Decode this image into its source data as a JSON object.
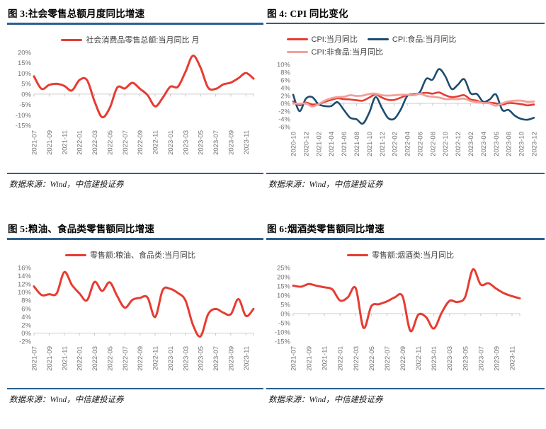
{
  "page": {
    "background": "#ffffff",
    "accent_rule_color": "#2B608E"
  },
  "figures": [
    {
      "title": "图 3:社会零售总额月度同比增速",
      "source": "数据来源：Wind，中信建投证券"
    },
    {
      "title": "图 4: CPI 同比变化",
      "source": "数据来源：Wind，中信建投证券"
    },
    {
      "title": "图 5:粮油、食品类零售额同比增速",
      "source": "数据来源：Wind，中信建投证券"
    },
    {
      "title": "图 6:烟酒类零售额同比增速",
      "source": "数据来源：Wind，中信建投证券"
    }
  ],
  "chart_data": [
    {
      "type": "line",
      "title": "图 3:社会零售总额月度同比增速",
      "ylim": [
        -15,
        20
      ],
      "ystep": 5,
      "y_format": "percent",
      "grid": false,
      "legend_position": "top-center",
      "xlabel_every": 2,
      "months": [
        "2021-07",
        "2021-08",
        "2021-09",
        "2021-10",
        "2021-11",
        "2021-12",
        "2022-01",
        "2022-02",
        "2022-03",
        "2022-04",
        "2022-05",
        "2022-06",
        "2022-07",
        "2022-08",
        "2022-09",
        "2022-10",
        "2022-11",
        "2022-12",
        "2023-01",
        "2023-02",
        "2023-03",
        "2023-04",
        "2023-05",
        "2023-06",
        "2023-07",
        "2023-08",
        "2023-09",
        "2023-10",
        "2023-11",
        "2023-12"
      ],
      "series": [
        {
          "name": "社会消费品零售总额:当月同比 月",
          "color": "#E63C32",
          "width": 3,
          "values": [
            8.5,
            2.5,
            4.4,
            4.9,
            3.9,
            1.7,
            6.7,
            6.7,
            -3.5,
            -11.1,
            -6.7,
            3.1,
            2.7,
            5.4,
            2.5,
            -0.5,
            -5.9,
            -1.8,
            3.5,
            3.5,
            10.6,
            18.4,
            12.7,
            3.1,
            2.5,
            4.6,
            5.5,
            7.6,
            10.1,
            7.4
          ]
        }
      ]
    },
    {
      "type": "line",
      "title": "图 4: CPI 同比变化",
      "ylim": [
        -6,
        10
      ],
      "ystep": 2,
      "y_format": "percent",
      "grid": false,
      "legend_position": "top-left-wrap",
      "xlabel_every": 2,
      "months": [
        "2020-10",
        "2020-11",
        "2020-12",
        "2021-01",
        "2021-02",
        "2021-03",
        "2021-04",
        "2021-05",
        "2021-06",
        "2021-07",
        "2021-08",
        "2021-09",
        "2021-10",
        "2021-11",
        "2021-12",
        "2022-01",
        "2022-02",
        "2022-03",
        "2022-04",
        "2022-05",
        "2022-06",
        "2022-07",
        "2022-08",
        "2022-09",
        "2022-10",
        "2022-11",
        "2022-12",
        "2023-01",
        "2023-02",
        "2023-03",
        "2023-04",
        "2023-05",
        "2023-06",
        "2023-07",
        "2023-08",
        "2023-09",
        "2023-10",
        "2023-11",
        "2023-12"
      ],
      "series": [
        {
          "name": "CPI:当月同比",
          "color": "#E63C32",
          "width": 2.6,
          "values": [
            0.5,
            -0.5,
            0.2,
            -0.3,
            -0.2,
            0.4,
            0.9,
            1.3,
            1.1,
            1.0,
            0.8,
            0.7,
            1.5,
            2.3,
            1.5,
            0.9,
            0.9,
            1.5,
            2.1,
            2.1,
            2.5,
            2.7,
            2.5,
            2.8,
            2.1,
            1.6,
            1.8,
            2.1,
            1.0,
            0.7,
            0.1,
            0.2,
            0.0,
            -0.3,
            0.1,
            0.0,
            -0.2,
            -0.5,
            -0.3
          ]
        },
        {
          "name": "CPI:食品:当月同比",
          "color": "#1E4C6E",
          "width": 2.6,
          "values": [
            2.2,
            -2.0,
            1.2,
            1.6,
            -0.2,
            -0.7,
            -0.7,
            0.3,
            -1.7,
            -3.7,
            -4.1,
            -5.2,
            -2.4,
            1.6,
            -1.2,
            -3.8,
            -3.9,
            -1.5,
            1.9,
            2.3,
            2.9,
            6.3,
            6.1,
            8.8,
            7.0,
            3.7,
            4.8,
            6.2,
            2.6,
            2.4,
            0.4,
            1.0,
            2.3,
            -1.7,
            -1.7,
            -3.2,
            -4.0,
            -4.2,
            -3.7
          ]
        },
        {
          "name": "CPI:非食品:当月同比",
          "color": "#F2A09B",
          "width": 2.8,
          "values": [
            0.0,
            -0.1,
            0.0,
            -0.8,
            -0.2,
            0.7,
            1.3,
            1.6,
            1.7,
            2.1,
            1.9,
            2.0,
            2.4,
            2.5,
            2.1,
            2.0,
            2.1,
            2.2,
            2.2,
            2.1,
            2.5,
            1.9,
            1.7,
            1.5,
            1.1,
            1.1,
            1.1,
            1.2,
            0.6,
            0.3,
            0.1,
            0.0,
            -0.6,
            0.0,
            0.5,
            0.7,
            0.7,
            0.4,
            0.5
          ]
        }
      ]
    },
    {
      "type": "line",
      "title": "图 5:粮油、食品类零售额同比增速",
      "ylim": [
        -2,
        16
      ],
      "ystep": 2,
      "y_format": "percent",
      "grid": false,
      "legend_position": "top-center",
      "xlabel_every": 2,
      "months": [
        "2021-07",
        "2021-08",
        "2021-09",
        "2021-10",
        "2021-11",
        "2021-12",
        "2022-01",
        "2022-02",
        "2022-03",
        "2022-04",
        "2022-05",
        "2022-06",
        "2022-07",
        "2022-08",
        "2022-09",
        "2022-10",
        "2022-11",
        "2022-12",
        "2023-01",
        "2023-02",
        "2023-03",
        "2023-04",
        "2023-05",
        "2023-06",
        "2023-07",
        "2023-08",
        "2023-09",
        "2023-10",
        "2023-11",
        "2023-12"
      ],
      "series": [
        {
          "name": "零售额:粮油、食品类:当月同比",
          "color": "#E63C32",
          "width": 3,
          "values": [
            11.4,
            9.3,
            9.5,
            9.7,
            14.9,
            11.8,
            9.7,
            8.0,
            12.5,
            10.3,
            12.4,
            9.0,
            6.2,
            8.1,
            8.6,
            8.7,
            3.9,
            10.5,
            10.8,
            9.8,
            8.0,
            2.0,
            -0.8,
            4.6,
            5.9,
            5.0,
            4.6,
            8.3,
            4.2,
            5.9
          ]
        }
      ]
    },
    {
      "type": "line",
      "title": "图 6:烟酒类零售额同比增速",
      "ylim": [
        -15,
        25
      ],
      "ystep": 5,
      "y_format": "percent",
      "grid": false,
      "legend_position": "top-center",
      "xlabel_every": 2,
      "months": [
        "2021-07",
        "2021-08",
        "2021-09",
        "2021-10",
        "2021-11",
        "2021-12",
        "2022-01",
        "2022-02",
        "2022-03",
        "2022-04",
        "2022-05",
        "2022-06",
        "2022-07",
        "2022-08",
        "2022-09",
        "2022-10",
        "2022-11",
        "2022-12",
        "2023-01",
        "2023-02",
        "2023-03",
        "2023-04",
        "2023-05",
        "2023-06",
        "2023-07",
        "2023-08",
        "2023-09",
        "2023-10",
        "2023-11",
        "2023-12"
      ],
      "series": [
        {
          "name": "零售额:烟酒类:当月同比",
          "color": "#E63C32",
          "width": 3,
          "values": [
            15.2,
            14.6,
            16.1,
            15.1,
            14.3,
            13.2,
            7.1,
            8.9,
            13.8,
            -7.7,
            4.0,
            5.1,
            6.6,
            8.8,
            9.3,
            -9.4,
            -0.6,
            -1.9,
            -8.1,
            0.5,
            6.9,
            6.3,
            9.0,
            24.0,
            15.8,
            16.5,
            13.5,
            11.0,
            9.5,
            8.3
          ]
        }
      ]
    }
  ]
}
